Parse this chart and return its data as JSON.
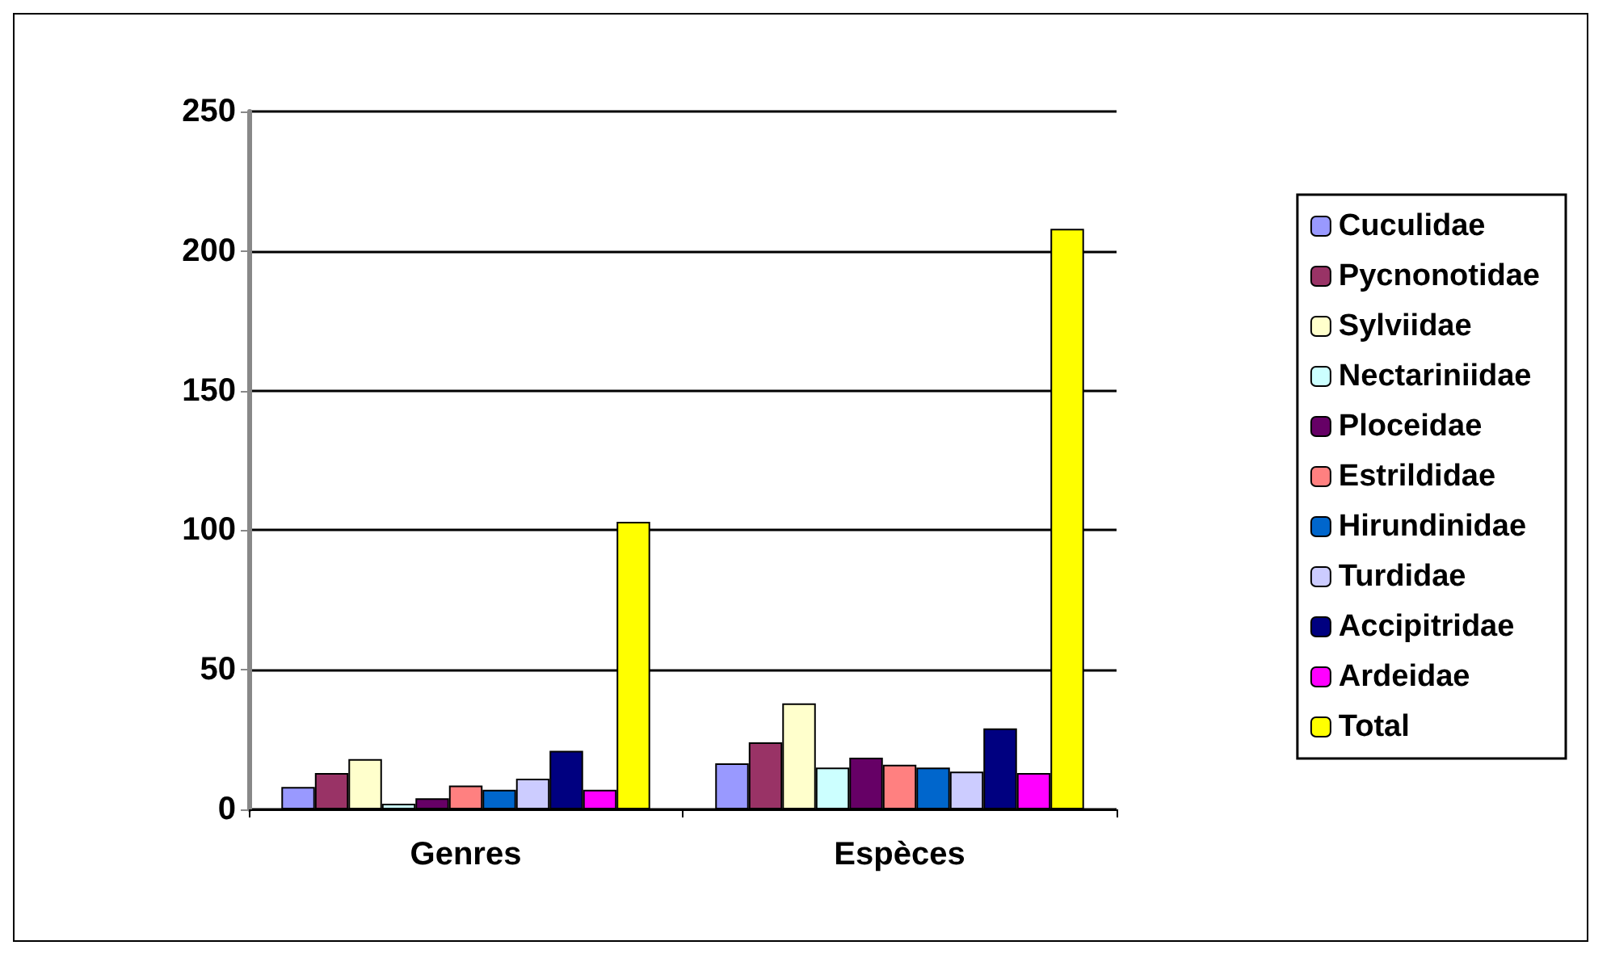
{
  "chart_data": {
    "type": "bar",
    "categories": [
      "Genres",
      "Espèces"
    ],
    "series": [
      {
        "name": "Cuculidae",
        "color": "#9999ff",
        "values": [
          8,
          16.5
        ]
      },
      {
        "name": "Pycnonotidae",
        "color": "#993366",
        "values": [
          13,
          24
        ]
      },
      {
        "name": "Sylviidae",
        "color": "#ffffcc",
        "values": [
          18,
          38
        ]
      },
      {
        "name": "Nectariniidae",
        "color": "#ccffff",
        "values": [
          2,
          15
        ]
      },
      {
        "name": "Ploceidae",
        "color": "#660066",
        "values": [
          4,
          18.5
        ]
      },
      {
        "name": "Estrildidae",
        "color": "#ff8080",
        "values": [
          8.5,
          16
        ]
      },
      {
        "name": "Hirundinidae",
        "color": "#0066cc",
        "values": [
          7,
          15
        ]
      },
      {
        "name": "Turdidae",
        "color": "#ccccff",
        "values": [
          11,
          13.5
        ]
      },
      {
        "name": "Accipitridae",
        "color": "#000080",
        "values": [
          21,
          29
        ]
      },
      {
        "name": "Ardeidae",
        "color": "#ff00ff",
        "values": [
          7,
          13
        ]
      },
      {
        "name": "Total",
        "color": "#ffff00",
        "values": [
          103,
          208
        ]
      }
    ],
    "ylim": [
      0,
      250
    ],
    "yticks": [
      0,
      50,
      100,
      150,
      200,
      250
    ],
    "grid": "y",
    "legend": "right"
  }
}
